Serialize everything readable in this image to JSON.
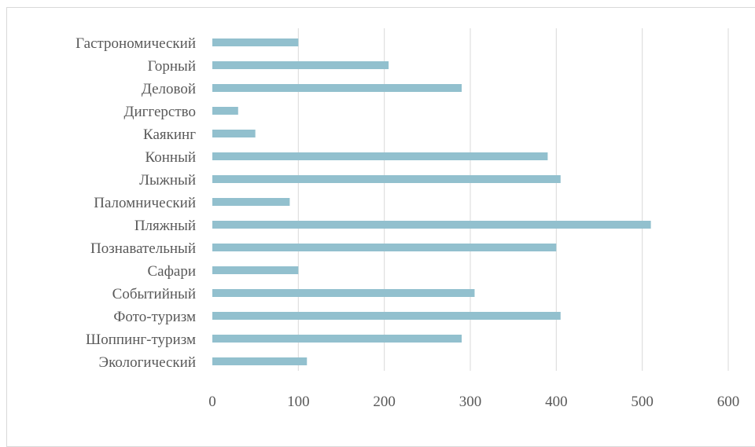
{
  "chart_data": {
    "type": "bar",
    "orientation": "horizontal",
    "title": "",
    "xlabel": "",
    "ylabel": "",
    "categories": [
      "Гастрономический",
      "Горный",
      "Деловой",
      "Диггерство",
      "Каякинг",
      "Конный",
      "Лыжный",
      "Паломнический",
      "Пляжный",
      "Познавательный",
      "Сафари",
      "Событийный",
      "Фото-туризм",
      "Шоппинг-туризм",
      "Экологический"
    ],
    "values": [
      100,
      205,
      290,
      30,
      50,
      390,
      405,
      90,
      510,
      400,
      100,
      305,
      405,
      290,
      110
    ],
    "xlim": [
      0,
      600
    ],
    "xticks": [
      "0",
      "100",
      "200",
      "300",
      "400",
      "500",
      "600"
    ],
    "grid": "vertical",
    "legend": "none",
    "colors": {
      "bar": "#92c0ce",
      "grid": "#d9d9d9",
      "text": "#595959",
      "border": "#d9d9d9"
    }
  }
}
